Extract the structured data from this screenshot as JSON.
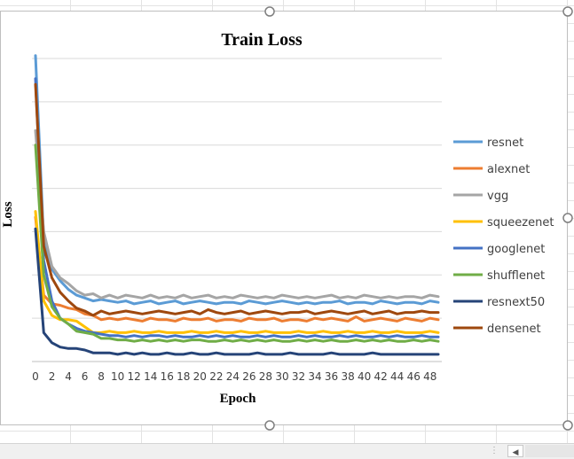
{
  "chart_data": {
    "type": "line",
    "title": "Train Loss",
    "xlabel": "Epoch",
    "ylabel": "Loss",
    "x": [
      0,
      1,
      2,
      3,
      4,
      5,
      6,
      7,
      8,
      9,
      10,
      11,
      12,
      13,
      14,
      15,
      16,
      17,
      18,
      19,
      20,
      21,
      22,
      23,
      24,
      25,
      26,
      27,
      28,
      29,
      30,
      31,
      32,
      33,
      34,
      35,
      36,
      37,
      38,
      39,
      40,
      41,
      42,
      43,
      44,
      45,
      46,
      47,
      48,
      49
    ],
    "x_tick_labels": [
      "0",
      "2",
      "4",
      "6",
      "8",
      "10",
      "12",
      "14",
      "16",
      "18",
      "20",
      "22",
      "24",
      "26",
      "28",
      "30",
      "32",
      "34",
      "36",
      "38",
      "40",
      "42",
      "44",
      "46",
      "48"
    ],
    "ylim": [
      0,
      10.5
    ],
    "y_gridlines": [
      0,
      1.5,
      3,
      4.5,
      6,
      7.5,
      9,
      10.5
    ],
    "y_tick_labels_visible": false,
    "grid": true,
    "legend_position": "right",
    "series": [
      {
        "name": "resnet",
        "color": "#5B9BD5",
        "values": [
          10.6,
          4.2,
          3.2,
          2.8,
          2.5,
          2.3,
          2.2,
          2.1,
          2.15,
          2.1,
          2.05,
          2.1,
          2.0,
          2.05,
          2.1,
          2.0,
          2.05,
          2.1,
          2.0,
          2.05,
          2.1,
          2.05,
          2.0,
          2.05,
          2.05,
          2.0,
          2.1,
          2.05,
          2.0,
          2.05,
          2.1,
          2.05,
          2.0,
          2.05,
          2.0,
          2.05,
          2.05,
          2.1,
          2.0,
          2.05,
          2.05,
          2.0,
          2.1,
          2.05,
          2.0,
          2.05,
          2.05,
          2.0,
          2.1,
          2.05
        ]
      },
      {
        "name": "alexnet",
        "color": "#ED7D31",
        "values": [
          5.0,
          2.3,
          2.0,
          1.95,
          1.85,
          1.8,
          1.65,
          1.6,
          1.45,
          1.5,
          1.45,
          1.5,
          1.45,
          1.4,
          1.5,
          1.45,
          1.45,
          1.4,
          1.5,
          1.45,
          1.45,
          1.5,
          1.4,
          1.45,
          1.45,
          1.4,
          1.5,
          1.45,
          1.45,
          1.5,
          1.4,
          1.45,
          1.45,
          1.4,
          1.5,
          1.45,
          1.5,
          1.45,
          1.4,
          1.55,
          1.4,
          1.45,
          1.5,
          1.45,
          1.4,
          1.5,
          1.45,
          1.4,
          1.5,
          1.45
        ]
      },
      {
        "name": "vgg",
        "color": "#A5A5A5",
        "values": [
          8.0,
          4.5,
          3.3,
          2.9,
          2.7,
          2.45,
          2.3,
          2.35,
          2.2,
          2.3,
          2.2,
          2.3,
          2.25,
          2.2,
          2.3,
          2.2,
          2.25,
          2.2,
          2.3,
          2.2,
          2.25,
          2.3,
          2.2,
          2.25,
          2.2,
          2.3,
          2.25,
          2.2,
          2.25,
          2.2,
          2.3,
          2.25,
          2.2,
          2.25,
          2.2,
          2.25,
          2.3,
          2.2,
          2.25,
          2.2,
          2.3,
          2.25,
          2.2,
          2.25,
          2.2,
          2.25,
          2.25,
          2.2,
          2.3,
          2.25
        ]
      },
      {
        "name": "squeezenet",
        "color": "#FFC000",
        "values": [
          5.2,
          2.1,
          1.6,
          1.45,
          1.45,
          1.4,
          1.2,
          1.0,
          1.0,
          1.05,
          1.0,
          1.0,
          1.05,
          1.0,
          1.0,
          1.05,
          1.0,
          1.0,
          1.0,
          1.05,
          1.0,
          1.0,
          1.05,
          1.0,
          1.0,
          1.05,
          1.0,
          1.0,
          1.05,
          1.0,
          1.0,
          1.0,
          1.05,
          1.0,
          1.0,
          1.05,
          1.0,
          1.0,
          1.05,
          1.0,
          1.0,
          1.05,
          1.0,
          1.0,
          1.05,
          1.0,
          1.0,
          1.0,
          1.05,
          1.0
        ]
      },
      {
        "name": "googlenet",
        "color": "#4472C4",
        "values": [
          9.8,
          3.5,
          2.1,
          1.5,
          1.3,
          1.15,
          1.05,
          1.0,
          0.95,
          0.9,
          0.9,
          0.85,
          0.9,
          0.85,
          0.9,
          0.9,
          0.85,
          0.9,
          0.85,
          0.85,
          0.9,
          0.85,
          0.9,
          0.85,
          0.9,
          0.85,
          0.85,
          0.9,
          0.85,
          0.9,
          0.85,
          0.85,
          0.9,
          0.85,
          0.9,
          0.85,
          0.85,
          0.9,
          0.85,
          0.9,
          0.85,
          0.85,
          0.9,
          0.85,
          0.9,
          0.85,
          0.85,
          0.9,
          0.85,
          0.85
        ]
      },
      {
        "name": "shufflenet",
        "color": "#70AD47",
        "values": [
          7.5,
          3.0,
          1.9,
          1.5,
          1.3,
          1.05,
          1.0,
          0.95,
          0.8,
          0.8,
          0.75,
          0.75,
          0.7,
          0.75,
          0.7,
          0.75,
          0.7,
          0.75,
          0.7,
          0.75,
          0.75,
          0.7,
          0.7,
          0.75,
          0.7,
          0.75,
          0.7,
          0.75,
          0.7,
          0.75,
          0.7,
          0.7,
          0.75,
          0.7,
          0.75,
          0.7,
          0.75,
          0.7,
          0.7,
          0.75,
          0.7,
          0.75,
          0.7,
          0.75,
          0.7,
          0.7,
          0.75,
          0.7,
          0.75,
          0.7
        ]
      },
      {
        "name": "resnext50",
        "color": "#264478",
        "values": [
          4.6,
          1.0,
          0.65,
          0.5,
          0.45,
          0.45,
          0.4,
          0.3,
          0.3,
          0.3,
          0.25,
          0.3,
          0.25,
          0.3,
          0.25,
          0.25,
          0.3,
          0.25,
          0.25,
          0.3,
          0.25,
          0.25,
          0.3,
          0.25,
          0.25,
          0.25,
          0.25,
          0.3,
          0.25,
          0.25,
          0.25,
          0.3,
          0.25,
          0.25,
          0.25,
          0.25,
          0.3,
          0.25,
          0.25,
          0.25,
          0.25,
          0.3,
          0.25,
          0.25,
          0.25,
          0.25,
          0.25,
          0.25,
          0.25,
          0.25
        ]
      },
      {
        "name": "densenet",
        "color": "#9E480E",
        "values": [
          9.6,
          4.0,
          2.9,
          2.4,
          2.1,
          1.85,
          1.75,
          1.6,
          1.75,
          1.65,
          1.7,
          1.75,
          1.7,
          1.65,
          1.7,
          1.75,
          1.7,
          1.65,
          1.7,
          1.75,
          1.65,
          1.8,
          1.7,
          1.65,
          1.7,
          1.75,
          1.65,
          1.7,
          1.75,
          1.7,
          1.65,
          1.7,
          1.7,
          1.75,
          1.65,
          1.7,
          1.75,
          1.7,
          1.65,
          1.7,
          1.75,
          1.65,
          1.7,
          1.75,
          1.65,
          1.7,
          1.7,
          1.75,
          1.7,
          1.7
        ]
      }
    ]
  }
}
